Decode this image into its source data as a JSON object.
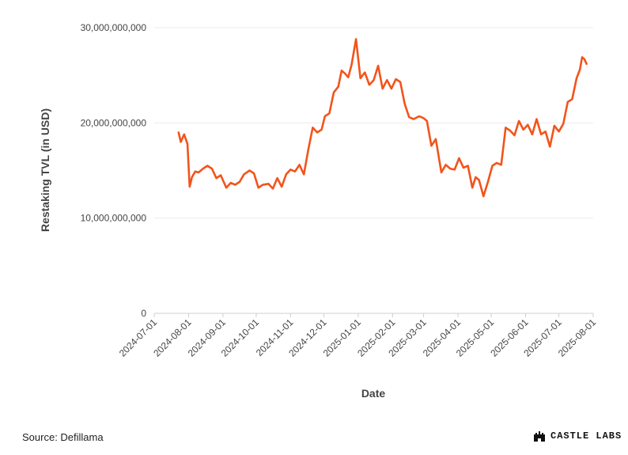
{
  "source": "Source: Defillama",
  "brand": {
    "name": "CASTLE LABS",
    "logo_icon": "castle-icon"
  },
  "chart_data": {
    "type": "line",
    "title": "",
    "xlabel": "Date",
    "ylabel": "Restaking TVL (in USD)",
    "ylim": [
      0,
      30000000000
    ],
    "yticks": [
      {
        "value": 0,
        "label": "0"
      },
      {
        "value": 10000000000,
        "label": "10,000,000,000"
      },
      {
        "value": 20000000000,
        "label": "20,000,000,000"
      },
      {
        "value": 30000000000,
        "label": "30,000,000,000"
      }
    ],
    "xlim": [
      "2024-07-01",
      "2025-08-01"
    ],
    "xticks": [
      "2024-07-01",
      "2024-08-01",
      "2024-09-01",
      "2024-10-01",
      "2024-11-01",
      "2024-12-01",
      "2025-01-01",
      "2025-02-01",
      "2025-03-01",
      "2025-04-01",
      "2025-05-01",
      "2025-06-01",
      "2025-07-01",
      "2025-08-01"
    ],
    "grid": {
      "horizontal": true,
      "vertical": false
    },
    "line_color": "#f2541b",
    "series": [
      {
        "x": [
          "2024-07-23",
          "2024-07-25",
          "2024-07-28",
          "2024-07-31",
          "2024-08-02",
          "2024-08-04",
          "2024-08-07",
          "2024-08-10",
          "2024-08-14",
          "2024-08-18",
          "2024-08-22",
          "2024-08-26",
          "2024-08-30",
          "2024-09-04",
          "2024-09-08",
          "2024-09-12",
          "2024-09-16",
          "2024-09-20",
          "2024-09-25",
          "2024-09-29",
          "2024-10-03",
          "2024-10-07",
          "2024-10-12",
          "2024-10-16",
          "2024-10-20",
          "2024-10-24",
          "2024-10-28",
          "2024-11-01",
          "2024-11-05",
          "2024-11-09",
          "2024-11-13",
          "2024-11-17",
          "2024-11-21",
          "2024-11-25",
          "2024-11-29",
          "2024-12-02",
          "2024-12-06",
          "2024-12-10",
          "2024-12-14",
          "2024-12-17",
          "2024-12-20",
          "2024-12-23",
          "2024-12-26",
          "2024-12-30",
          "2025-01-03",
          "2025-01-07",
          "2025-01-11",
          "2025-01-15",
          "2025-01-19",
          "2025-01-23",
          "2025-01-27",
          "2025-01-31",
          "2025-02-04",
          "2025-02-08",
          "2025-02-12",
          "2025-02-16",
          "2025-02-20",
          "2025-02-25",
          "2025-03-01",
          "2025-03-04",
          "2025-03-08",
          "2025-03-12",
          "2025-03-17",
          "2025-03-21",
          "2025-03-25",
          "2025-03-29",
          "2025-04-02",
          "2025-04-06",
          "2025-04-10",
          "2025-04-14",
          "2025-04-17",
          "2025-04-20",
          "2025-04-24",
          "2025-04-28",
          "2025-05-02",
          "2025-05-06",
          "2025-05-10",
          "2025-05-14",
          "2025-05-18",
          "2025-05-22",
          "2025-05-26",
          "2025-05-30",
          "2025-06-03",
          "2025-06-07",
          "2025-06-11",
          "2025-06-15",
          "2025-06-19",
          "2025-06-23",
          "2025-06-27",
          "2025-07-01",
          "2025-07-05",
          "2025-07-09",
          "2025-07-13",
          "2025-07-17",
          "2025-07-20",
          "2025-07-22",
          "2025-07-24",
          "2025-07-26"
        ],
        "values": [
          19000000000,
          18000000000,
          18800000000,
          17800000000,
          13300000000,
          14300000000,
          14900000000,
          14800000000,
          15200000000,
          15500000000,
          15200000000,
          14200000000,
          14500000000,
          13200000000,
          13700000000,
          13500000000,
          13800000000,
          14600000000,
          15000000000,
          14700000000,
          13200000000,
          13500000000,
          13600000000,
          13100000000,
          14200000000,
          13300000000,
          14600000000,
          15100000000,
          14900000000,
          15600000000,
          14600000000,
          17200000000,
          19500000000,
          19000000000,
          19300000000,
          20700000000,
          21000000000,
          23200000000,
          23800000000,
          25500000000,
          25200000000,
          24800000000,
          26100000000,
          28800000000,
          24700000000,
          25300000000,
          24000000000,
          24500000000,
          26000000000,
          23600000000,
          24500000000,
          23600000000,
          24600000000,
          24300000000,
          22000000000,
          20600000000,
          20400000000,
          20700000000,
          20500000000,
          20200000000,
          17600000000,
          18300000000,
          14800000000,
          15600000000,
          15200000000,
          15100000000,
          16300000000,
          15300000000,
          15500000000,
          13200000000,
          14300000000,
          14000000000,
          12300000000,
          13800000000,
          15500000000,
          15800000000,
          15600000000,
          19500000000,
          19200000000,
          18700000000,
          20200000000,
          19300000000,
          19800000000,
          18800000000,
          20400000000,
          18800000000,
          19100000000,
          17500000000,
          19700000000,
          19100000000,
          19900000000,
          22200000000,
          22500000000,
          24700000000,
          25600000000,
          26900000000,
          26700000000,
          26200000000
        ]
      }
    ]
  }
}
